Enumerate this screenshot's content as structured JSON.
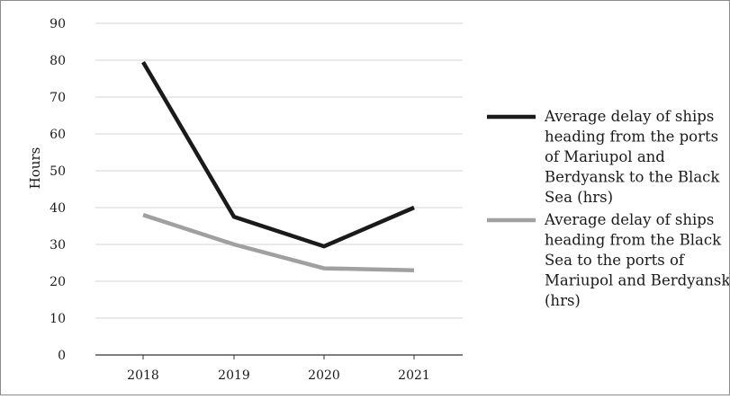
{
  "chart_data": {
    "type": "line",
    "categories": [
      "2018",
      "2019",
      "2020",
      "2021"
    ],
    "ylabel": "Hours",
    "xlabel": "",
    "ylim": [
      0,
      90
    ],
    "yticks": [
      "0",
      "10",
      "20",
      "30",
      "40",
      "50",
      "60",
      "70",
      "80",
      "90"
    ],
    "grid": true,
    "legend_position": "right",
    "series": [
      {
        "name": "Average delay of ships heading from the ports of Mariupol and Berdyansk to the Black Sea (hrs)",
        "legend_lines": [
          "Average delay of ships",
          "heading from the ports",
          "of Mariupol and",
          "Berdyansk to the Black",
          "Sea (hrs)"
        ],
        "values": [
          79.5,
          37.5,
          29.5,
          40
        ],
        "color": "#1a1a1a"
      },
      {
        "name": "Average delay of ships heading from the Black Sea to the ports of Mariupol and Berdyansk (hrs)",
        "legend_lines": [
          "Average delay of ships",
          "heading from the Black",
          "Sea to the ports of",
          "Mariupol and Berdyansk",
          "(hrs)"
        ],
        "values": [
          38,
          30,
          23.5,
          23
        ],
        "color": "#a0a0a0"
      }
    ]
  }
}
